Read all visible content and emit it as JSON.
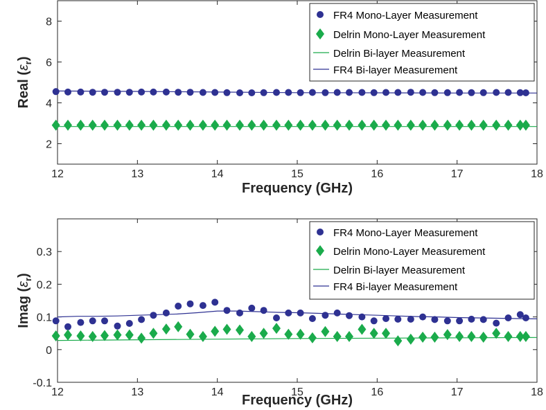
{
  "chart_data": [
    {
      "type": "line",
      "ylabel_main": "Real (",
      "ylabel_symbol": "ε",
      "ylabel_subscript": "r",
      "ylabel_close": ")",
      "xlabel": "Frequency (GHz)",
      "xlim": [
        12,
        18
      ],
      "ylim": [
        1,
        9
      ],
      "xticks": [
        "12",
        "13",
        "14",
        "15",
        "16",
        "17",
        "18"
      ],
      "yticks": [
        "2",
        "4",
        "6",
        "8"
      ],
      "grid": false,
      "legend_position": "top-right",
      "x": [
        11.98,
        12.13,
        12.29,
        12.44,
        12.59,
        12.75,
        12.9,
        13.05,
        13.2,
        13.36,
        13.51,
        13.66,
        13.82,
        13.97,
        14.12,
        14.28,
        14.43,
        14.58,
        14.74,
        14.89,
        15.04,
        15.19,
        15.35,
        15.5,
        15.65,
        15.81,
        15.96,
        16.11,
        16.26,
        16.42,
        16.57,
        16.72,
        16.88,
        17.03,
        17.18,
        17.33,
        17.49,
        17.64,
        17.79,
        17.86
      ],
      "series": [
        {
          "name": "FR4 Mono-Layer Measurement",
          "kind": "scatter",
          "marker": "circle",
          "color": "#2e3192",
          "values": [
            4.55,
            4.53,
            4.53,
            4.52,
            4.52,
            4.52,
            4.52,
            4.53,
            4.53,
            4.53,
            4.52,
            4.52,
            4.51,
            4.51,
            4.5,
            4.49,
            4.49,
            4.5,
            4.51,
            4.51,
            4.5,
            4.51,
            4.5,
            4.51,
            4.51,
            4.51,
            4.5,
            4.51,
            4.51,
            4.52,
            4.51,
            4.5,
            4.5,
            4.51,
            4.5,
            4.5,
            4.51,
            4.51,
            4.5,
            4.49
          ]
        },
        {
          "name": "Delrin Mono-Layer Measurement",
          "kind": "scatter",
          "marker": "diamond",
          "color": "#1aab4b",
          "values": [
            2.91,
            2.91,
            2.91,
            2.91,
            2.91,
            2.91,
            2.91,
            2.91,
            2.91,
            2.91,
            2.91,
            2.91,
            2.91,
            2.91,
            2.91,
            2.91,
            2.91,
            2.91,
            2.91,
            2.91,
            2.91,
            2.91,
            2.91,
            2.91,
            2.91,
            2.91,
            2.91,
            2.91,
            2.91,
            2.91,
            2.91,
            2.91,
            2.91,
            2.91,
            2.91,
            2.91,
            2.91,
            2.91,
            2.91,
            2.91
          ]
        },
        {
          "name": "Delrin Bi-layer Measurement",
          "kind": "line",
          "color": "#1aab4b",
          "line_x": [
            12,
            13,
            14,
            15,
            16,
            17,
            18
          ],
          "line_values": [
            2.84,
            2.84,
            2.84,
            2.84,
            2.84,
            2.84,
            2.84
          ]
        },
        {
          "name": "FR4 Bi-layer Measurement",
          "kind": "line",
          "color": "#2e3192",
          "line_x": [
            12,
            13,
            14,
            15,
            16,
            17,
            18
          ],
          "line_values": [
            4.58,
            4.56,
            4.53,
            4.5,
            4.49,
            4.48,
            4.48
          ]
        }
      ]
    },
    {
      "type": "line",
      "ylabel_main": "Imag (",
      "ylabel_symbol": "ε",
      "ylabel_subscript": "r",
      "ylabel_close": ")",
      "xlabel": "Frequency (GHz)",
      "xlim": [
        12,
        18
      ],
      "ylim": [
        -0.1,
        0.4
      ],
      "xticks": [
        "12",
        "13",
        "14",
        "15",
        "16",
        "17",
        "18"
      ],
      "yticks": [
        "-0.1",
        "0",
        "0.1",
        "0.2",
        "0.3"
      ],
      "grid": false,
      "legend_position": "top-right",
      "x": [
        11.98,
        12.13,
        12.29,
        12.44,
        12.59,
        12.75,
        12.9,
        13.05,
        13.2,
        13.36,
        13.51,
        13.66,
        13.82,
        13.97,
        14.12,
        14.28,
        14.43,
        14.58,
        14.74,
        14.89,
        15.04,
        15.19,
        15.35,
        15.5,
        15.65,
        15.81,
        15.96,
        16.11,
        16.26,
        16.42,
        16.57,
        16.72,
        16.88,
        17.03,
        17.18,
        17.33,
        17.49,
        17.64,
        17.79,
        17.86
      ],
      "series": [
        {
          "name": "FR4 Mono-Layer Measurement",
          "kind": "scatter",
          "marker": "circle",
          "color": "#2e3192",
          "values": [
            0.088,
            0.07,
            0.083,
            0.088,
            0.088,
            0.072,
            0.08,
            0.092,
            0.105,
            0.112,
            0.133,
            0.14,
            0.135,
            0.145,
            0.12,
            0.112,
            0.127,
            0.12,
            0.097,
            0.112,
            0.112,
            0.095,
            0.105,
            0.112,
            0.104,
            0.1,
            0.088,
            0.095,
            0.093,
            0.093,
            0.1,
            0.092,
            0.088,
            0.088,
            0.093,
            0.092,
            0.081,
            0.097,
            0.107,
            0.097
          ]
        },
        {
          "name": "Delrin Mono-Layer Measurement",
          "kind": "scatter",
          "marker": "diamond",
          "color": "#1aab4b",
          "values": [
            0.042,
            0.045,
            0.042,
            0.04,
            0.043,
            0.045,
            0.045,
            0.035,
            0.05,
            0.063,
            0.07,
            0.047,
            0.04,
            0.056,
            0.062,
            0.06,
            0.04,
            0.05,
            0.065,
            0.047,
            0.047,
            0.036,
            0.055,
            0.04,
            0.04,
            0.062,
            0.05,
            0.05,
            0.027,
            0.032,
            0.038,
            0.038,
            0.046,
            0.04,
            0.04,
            0.038,
            0.05,
            0.04,
            0.04,
            0.04
          ]
        },
        {
          "name": "Delrin Bi-layer Measurement",
          "kind": "line",
          "color": "#1aab4b",
          "line_x": [
            12,
            13,
            14,
            15,
            16,
            17,
            18
          ],
          "line_values": [
            0.028,
            0.03,
            0.032,
            0.034,
            0.035,
            0.036,
            0.037
          ]
        },
        {
          "name": "FR4 Bi-layer Measurement",
          "kind": "line",
          "color": "#2e3192",
          "line_x": [
            12,
            12.25,
            12.5,
            12.75,
            13,
            13.25,
            13.5,
            13.75,
            14,
            14.25,
            14.5,
            14.75,
            15,
            15.25,
            15.5,
            15.75,
            16,
            16.25,
            16.5,
            16.75,
            17,
            17.25,
            17.5,
            17.75,
            18
          ],
          "line_values": [
            0.1,
            0.102,
            0.102,
            0.103,
            0.105,
            0.107,
            0.109,
            0.113,
            0.118,
            0.118,
            0.116,
            0.114,
            0.113,
            0.111,
            0.109,
            0.107,
            0.105,
            0.103,
            0.101,
            0.1,
            0.098,
            0.097,
            0.096,
            0.095,
            0.094
          ]
        }
      ]
    }
  ]
}
